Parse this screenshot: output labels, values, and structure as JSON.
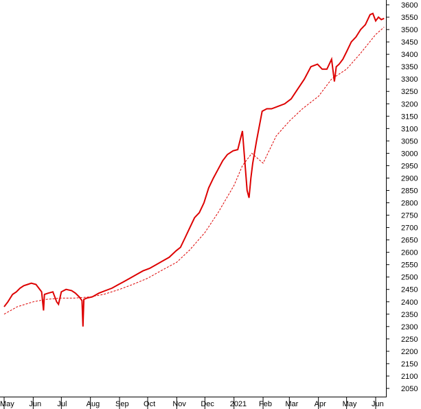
{
  "chart_data": {
    "type": "line",
    "title": "",
    "xlabel": "",
    "ylabel": "",
    "ylim": [
      2025,
      3625
    ],
    "y_ticks": [
      2050,
      2100,
      2150,
      2200,
      2250,
      2300,
      2350,
      2400,
      2450,
      2500,
      2550,
      2600,
      2650,
      2700,
      2750,
      2800,
      2850,
      2900,
      2950,
      3000,
      3050,
      3100,
      3150,
      3200,
      3250,
      3300,
      3350,
      3400,
      3450,
      3500,
      3550,
      3600
    ],
    "x_ticks": [
      "May",
      "Jun",
      "Jul",
      "Aug",
      "Sep",
      "Oct",
      "Nov",
      "Dec",
      "2021",
      "Feb",
      "Mar",
      "Apr",
      "May",
      "Jun"
    ],
    "x_tick_dates": [
      "2020-05-01",
      "2020-06-01",
      "2020-07-01",
      "2020-08-01",
      "2020-09-01",
      "2020-10-01",
      "2020-11-01",
      "2020-12-01",
      "2021-01-01",
      "2021-02-01",
      "2021-03-01",
      "2021-04-01",
      "2021-05-01",
      "2021-06-01"
    ],
    "grid": false,
    "colors": {
      "price": "#dd0000",
      "average": "#dd0000",
      "axis": "#000000"
    },
    "series": [
      {
        "style": "solid",
        "x": [
          "2020-05-01",
          "2020-05-05",
          "2020-05-10",
          "2020-05-14",
          "2020-05-18",
          "2020-05-22",
          "2020-05-26",
          "2020-05-30",
          "2020-06-04",
          "2020-06-10",
          "2020-06-12",
          "2020-06-13",
          "2020-06-17",
          "2020-06-22",
          "2020-06-26",
          "2020-06-28",
          "2020-07-01",
          "2020-07-06",
          "2020-07-12",
          "2020-07-16",
          "2020-07-20",
          "2020-07-23",
          "2020-07-24",
          "2020-07-25",
          "2020-07-28",
          "2020-08-03",
          "2020-08-10",
          "2020-08-17",
          "2020-08-24",
          "2020-08-31",
          "2020-09-05",
          "2020-09-12",
          "2020-09-19",
          "2020-09-26",
          "2020-10-03",
          "2020-10-10",
          "2020-10-17",
          "2020-10-24",
          "2020-10-31",
          "2020-11-05",
          "2020-11-10",
          "2020-11-15",
          "2020-11-20",
          "2020-11-25",
          "2020-11-30",
          "2020-12-05",
          "2020-12-10",
          "2020-12-15",
          "2020-12-20",
          "2020-12-25",
          "2020-12-31",
          "2021-01-05",
          "2021-01-10",
          "2021-01-15",
          "2021-01-17",
          "2021-01-19",
          "2021-01-21",
          "2021-01-25",
          "2021-01-31",
          "2021-02-05",
          "2021-02-10",
          "2021-02-17",
          "2021-02-24",
          "2021-03-03",
          "2021-03-10",
          "2021-03-17",
          "2021-03-24",
          "2021-03-31",
          "2021-04-05",
          "2021-04-10",
          "2021-04-15",
          "2021-04-18",
          "2021-04-20",
          "2021-04-23",
          "2021-04-27",
          "2021-05-01",
          "2021-05-06",
          "2021-05-11",
          "2021-05-16",
          "2021-05-21",
          "2021-05-26",
          "2021-05-29",
          "2021-06-01",
          "2021-06-04",
          "2021-06-07",
          "2021-06-10"
        ],
        "y": [
          2380,
          2400,
          2430,
          2440,
          2455,
          2465,
          2470,
          2475,
          2470,
          2440,
          2365,
          2430,
          2435,
          2440,
          2400,
          2390,
          2440,
          2450,
          2445,
          2435,
          2420,
          2405,
          2300,
          2410,
          2415,
          2420,
          2435,
          2445,
          2455,
          2470,
          2480,
          2495,
          2510,
          2525,
          2535,
          2550,
          2565,
          2580,
          2605,
          2620,
          2660,
          2700,
          2740,
          2760,
          2800,
          2860,
          2900,
          2935,
          2970,
          2995,
          3010,
          3015,
          3090,
          2850,
          2820,
          2900,
          2960,
          3050,
          3170,
          3180,
          3180,
          3190,
          3200,
          3220,
          3260,
          3300,
          3350,
          3360,
          3340,
          3340,
          3380,
          3290,
          3350,
          3360,
          3380,
          3410,
          3450,
          3470,
          3500,
          3520,
          3560,
          3565,
          3535,
          3550,
          3540,
          3545
        ]
      },
      {
        "style": "dashed",
        "x": [
          "2020-05-01",
          "2020-05-15",
          "2020-06-01",
          "2020-06-15",
          "2020-07-01",
          "2020-07-15",
          "2020-08-01",
          "2020-08-15",
          "2020-09-01",
          "2020-09-15",
          "2020-10-01",
          "2020-10-15",
          "2020-11-01",
          "2020-11-15",
          "2020-12-01",
          "2020-12-15",
          "2021-01-01",
          "2021-01-10",
          "2021-01-20",
          "2021-02-01",
          "2021-02-15",
          "2021-03-01",
          "2021-03-15",
          "2021-04-01",
          "2021-04-15",
          "2021-05-01",
          "2021-05-15",
          "2021-06-01",
          "2021-06-10"
        ],
        "y": [
          2350,
          2380,
          2400,
          2410,
          2415,
          2415,
          2420,
          2430,
          2450,
          2470,
          2495,
          2525,
          2560,
          2610,
          2680,
          2760,
          2870,
          2950,
          3000,
          2960,
          3070,
          3130,
          3180,
          3230,
          3300,
          3340,
          3400,
          3480,
          3510
        ]
      }
    ]
  }
}
